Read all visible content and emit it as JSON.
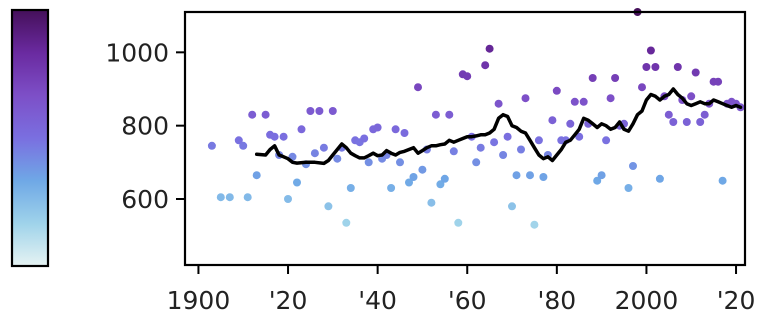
{
  "chart_data": {
    "type": "scatter",
    "title": "",
    "xlabel": "",
    "ylabel": "",
    "xlim": [
      1897,
      2022
    ],
    "ylim": [
      420,
      1110
    ],
    "x_ticks": [
      1900,
      1920,
      1940,
      1960,
      1980,
      2000,
      2020
    ],
    "x_tick_labels": [
      "1900",
      "'20",
      "'40",
      "'60",
      "'80",
      "2000",
      "'20"
    ],
    "y_ticks": [
      600,
      800,
      1000
    ],
    "y_tick_labels": [
      "600",
      "800",
      "1000"
    ],
    "grid": false,
    "legend": "none",
    "colorbar": {
      "position": "left",
      "vmin": 420,
      "vmax": 1110,
      "colors": [
        "#e6f3f3",
        "#9fd3ea",
        "#6fa8e6",
        "#7a6fe0",
        "#7d4fc7",
        "#6a2aa0",
        "#45105a"
      ]
    },
    "series": [
      {
        "type": "scatter",
        "points": [
          [
            1903,
            745
          ],
          [
            1905,
            605
          ],
          [
            1907,
            605
          ],
          [
            1909,
            760
          ],
          [
            1910,
            745
          ],
          [
            1911,
            605
          ],
          [
            1912,
            830
          ],
          [
            1913,
            665
          ],
          [
            1915,
            830
          ],
          [
            1916,
            775
          ],
          [
            1917,
            770
          ],
          [
            1918,
            720
          ],
          [
            1919,
            770
          ],
          [
            1920,
            600
          ],
          [
            1921,
            715
          ],
          [
            1922,
            645
          ],
          [
            1923,
            790
          ],
          [
            1924,
            695
          ],
          [
            1925,
            840
          ],
          [
            1926,
            725
          ],
          [
            1927,
            840
          ],
          [
            1928,
            740
          ],
          [
            1929,
            580
          ],
          [
            1930,
            840
          ],
          [
            1931,
            710
          ],
          [
            1932,
            740
          ],
          [
            1933,
            535
          ],
          [
            1934,
            630
          ],
          [
            1935,
            760
          ],
          [
            1936,
            755
          ],
          [
            1937,
            765
          ],
          [
            1938,
            700
          ],
          [
            1939,
            790
          ],
          [
            1940,
            795
          ],
          [
            1941,
            710
          ],
          [
            1942,
            720
          ],
          [
            1943,
            630
          ],
          [
            1944,
            790
          ],
          [
            1945,
            700
          ],
          [
            1946,
            780
          ],
          [
            1947,
            645
          ],
          [
            1948,
            660
          ],
          [
            1949,
            905
          ],
          [
            1950,
            680
          ],
          [
            1951,
            735
          ],
          [
            1952,
            590
          ],
          [
            1953,
            830
          ],
          [
            1954,
            640
          ],
          [
            1955,
            655
          ],
          [
            1956,
            830
          ],
          [
            1957,
            730
          ],
          [
            1958,
            535
          ],
          [
            1959,
            940
          ],
          [
            1960,
            935
          ],
          [
            1961,
            770
          ],
          [
            1962,
            700
          ],
          [
            1963,
            740
          ],
          [
            1964,
            965
          ],
          [
            1965,
            1010
          ],
          [
            1966,
            755
          ],
          [
            1967,
            860
          ],
          [
            1968,
            720
          ],
          [
            1969,
            770
          ],
          [
            1970,
            580
          ],
          [
            1971,
            665
          ],
          [
            1972,
            735
          ],
          [
            1973,
            875
          ],
          [
            1974,
            665
          ],
          [
            1975,
            530
          ],
          [
            1976,
            760
          ],
          [
            1977,
            660
          ],
          [
            1978,
            720
          ],
          [
            1979,
            815
          ],
          [
            1980,
            895
          ],
          [
            1981,
            760
          ],
          [
            1982,
            760
          ],
          [
            1983,
            805
          ],
          [
            1984,
            865
          ],
          [
            1985,
            770
          ],
          [
            1986,
            865
          ],
          [
            1987,
            805
          ],
          [
            1988,
            930
          ],
          [
            1989,
            650
          ],
          [
            1990,
            665
          ],
          [
            1991,
            760
          ],
          [
            1992,
            875
          ],
          [
            1993,
            930
          ],
          [
            1994,
            800
          ],
          [
            1995,
            805
          ],
          [
            1996,
            630
          ],
          [
            1997,
            690
          ],
          [
            1998,
            1110
          ],
          [
            1999,
            905
          ],
          [
            2000,
            960
          ],
          [
            2001,
            1005
          ],
          [
            2002,
            960
          ],
          [
            2003,
            655
          ],
          [
            2004,
            880
          ],
          [
            2005,
            830
          ],
          [
            2006,
            810
          ],
          [
            2007,
            960
          ],
          [
            2008,
            870
          ],
          [
            2009,
            810
          ],
          [
            2010,
            880
          ],
          [
            2011,
            945
          ],
          [
            2012,
            810
          ],
          [
            2013,
            830
          ],
          [
            2014,
            860
          ],
          [
            2015,
            920
          ],
          [
            2016,
            920
          ],
          [
            2017,
            650
          ],
          [
            2018,
            860
          ],
          [
            2019,
            865
          ],
          [
            2020,
            860
          ],
          [
            2021,
            850
          ]
        ]
      },
      {
        "type": "line",
        "color": "#000000",
        "points": [
          [
            1913,
            722
          ],
          [
            1915,
            720
          ],
          [
            1916,
            735
          ],
          [
            1917,
            745
          ],
          [
            1918,
            720
          ],
          [
            1919,
            715
          ],
          [
            1920,
            710
          ],
          [
            1921,
            700
          ],
          [
            1922,
            698
          ],
          [
            1924,
            700
          ],
          [
            1926,
            700
          ],
          [
            1928,
            697
          ],
          [
            1929,
            705
          ],
          [
            1930,
            720
          ],
          [
            1931,
            735
          ],
          [
            1932,
            750
          ],
          [
            1933,
            740
          ],
          [
            1934,
            725
          ],
          [
            1935,
            718
          ],
          [
            1936,
            712
          ],
          [
            1937,
            712
          ],
          [
            1938,
            718
          ],
          [
            1939,
            725
          ],
          [
            1940,
            718
          ],
          [
            1941,
            720
          ],
          [
            1942,
            732
          ],
          [
            1943,
            725
          ],
          [
            1944,
            720
          ],
          [
            1945,
            727
          ],
          [
            1946,
            730
          ],
          [
            1947,
            735
          ],
          [
            1948,
            740
          ],
          [
            1949,
            725
          ],
          [
            1950,
            732
          ],
          [
            1951,
            740
          ],
          [
            1952,
            745
          ],
          [
            1953,
            745
          ],
          [
            1954,
            748
          ],
          [
            1955,
            750
          ],
          [
            1956,
            760
          ],
          [
            1957,
            755
          ],
          [
            1958,
            760
          ],
          [
            1959,
            765
          ],
          [
            1960,
            770
          ],
          [
            1961,
            770
          ],
          [
            1962,
            772
          ],
          [
            1963,
            775
          ],
          [
            1964,
            775
          ],
          [
            1965,
            780
          ],
          [
            1966,
            790
          ],
          [
            1967,
            820
          ],
          [
            1968,
            830
          ],
          [
            1969,
            825
          ],
          [
            1970,
            800
          ],
          [
            1971,
            795
          ],
          [
            1972,
            785
          ],
          [
            1973,
            780
          ],
          [
            1974,
            760
          ],
          [
            1975,
            740
          ],
          [
            1976,
            720
          ],
          [
            1977,
            710
          ],
          [
            1978,
            715
          ],
          [
            1979,
            705
          ],
          [
            1980,
            720
          ],
          [
            1981,
            735
          ],
          [
            1982,
            755
          ],
          [
            1983,
            760
          ],
          [
            1984,
            775
          ],
          [
            1985,
            790
          ],
          [
            1986,
            820
          ],
          [
            1987,
            815
          ],
          [
            1988,
            805
          ],
          [
            1989,
            795
          ],
          [
            1990,
            805
          ],
          [
            1991,
            800
          ],
          [
            1992,
            790
          ],
          [
            1993,
            795
          ],
          [
            1994,
            810
          ],
          [
            1995,
            790
          ],
          [
            1996,
            785
          ],
          [
            1997,
            805
          ],
          [
            1998,
            830
          ],
          [
            1999,
            840
          ],
          [
            2000,
            870
          ],
          [
            2001,
            885
          ],
          [
            2002,
            880
          ],
          [
            2003,
            870
          ],
          [
            2004,
            880
          ],
          [
            2005,
            885
          ],
          [
            2006,
            900
          ],
          [
            2007,
            885
          ],
          [
            2008,
            875
          ],
          [
            2009,
            860
          ],
          [
            2010,
            855
          ],
          [
            2011,
            860
          ],
          [
            2012,
            865
          ],
          [
            2013,
            860
          ],
          [
            2014,
            860
          ],
          [
            2015,
            870
          ],
          [
            2016,
            865
          ],
          [
            2017,
            860
          ],
          [
            2018,
            855
          ],
          [
            2019,
            850
          ],
          [
            2020,
            855
          ],
          [
            2021,
            850
          ]
        ]
      }
    ]
  }
}
